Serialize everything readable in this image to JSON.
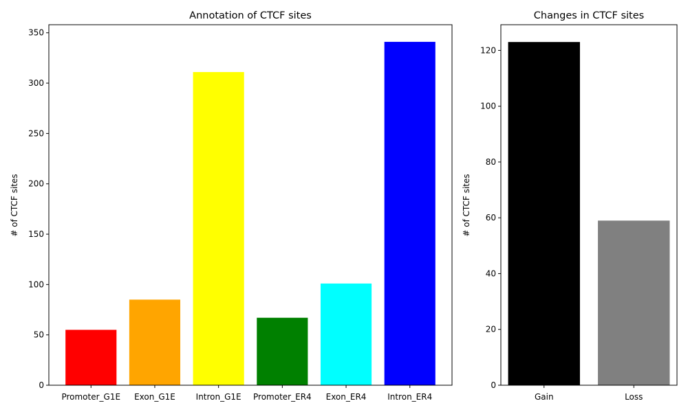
{
  "chart_data": [
    {
      "type": "bar",
      "title": "Annotation of CTCF sites",
      "xlabel": "",
      "ylabel": "# of CTCF sites",
      "categories": [
        "Promoter_G1E",
        "Exon_G1E",
        "Intron_G1E",
        "Promoter_ER4",
        "Exon_ER4",
        "Intron_ER4"
      ],
      "values": [
        55,
        85,
        311,
        67,
        101,
        341
      ],
      "colors": [
        "#ff0000",
        "#ffa500",
        "#ffff00",
        "#008000",
        "#00ffff",
        "#0000ff"
      ],
      "ylim": [
        0,
        358
      ],
      "yticks": [
        0,
        50,
        100,
        150,
        200,
        250,
        300,
        350
      ],
      "grid": false
    },
    {
      "type": "bar",
      "title": "Changes in CTCF sites",
      "xlabel": "",
      "ylabel": "# of CTCF sites",
      "categories": [
        "Gain",
        "Loss"
      ],
      "values": [
        123,
        59
      ],
      "colors": [
        "#000000",
        "#808080"
      ],
      "ylim": [
        0,
        129.2
      ],
      "yticks": [
        0,
        20,
        40,
        60,
        80,
        100,
        120
      ],
      "grid": false
    }
  ]
}
